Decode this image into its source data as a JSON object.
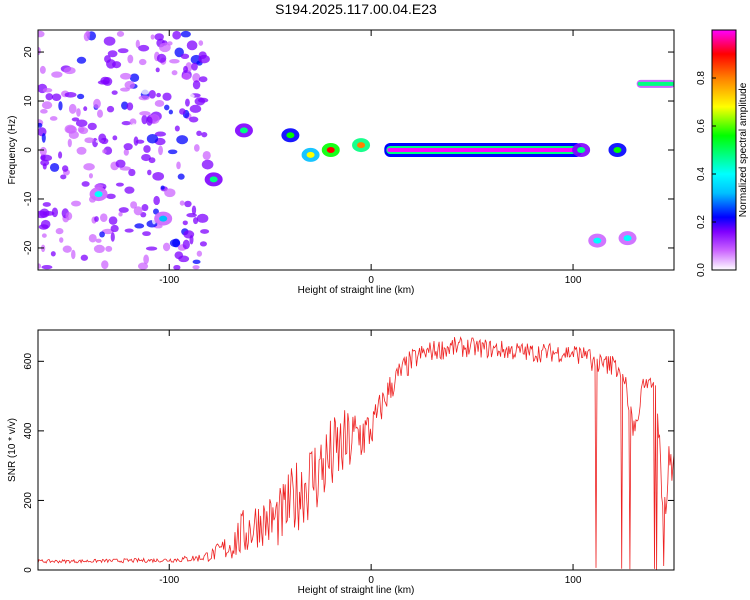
{
  "figure": {
    "title": "S194.2025.117.00.04.E23"
  },
  "chart_data": [
    {
      "type": "heatmap",
      "xlabel": "Height of straight line (km)",
      "ylabel": "Frequency (Hz)",
      "xlim": [
        -165,
        150
      ],
      "ylim": [
        -24.5,
        24.5
      ],
      "x_ticks": [
        -100,
        0,
        100
      ],
      "y_ticks": [
        20,
        10,
        0,
        -10,
        -20
      ],
      "colorbar": {
        "label": "Normalized spectral amplitude",
        "range": [
          0,
          1
        ],
        "ticks": [
          0.0,
          0.2,
          0.4,
          0.6,
          0.8
        ],
        "tick_labels": [
          "0.0",
          "0.2",
          "0.4",
          "0.6",
          "0.8"
        ]
      },
      "colormap": [
        "#ffffff",
        "#cc66ff",
        "#7f00ff",
        "#0000ff",
        "#00bfff",
        "#00ffff",
        "#00ff80",
        "#00ff00",
        "#ffff00",
        "#ff8000",
        "#ff0000",
        "#ff00ff"
      ],
      "features": [
        {
          "x_range": [
            -165,
            -80
          ],
          "freq_range": [
            -24,
            24
          ],
          "amplitude": 0.15,
          "description_level": "noise"
        },
        {
          "x": -135,
          "freq": -9,
          "amplitude": 0.45
        },
        {
          "x": -103,
          "freq": -14,
          "amplitude": 0.35
        },
        {
          "x": -78,
          "freq": -6,
          "amplitude": 0.55
        },
        {
          "x": -63,
          "freq": 4,
          "amplitude": 0.5
        },
        {
          "x": -40,
          "freq": 3,
          "amplitude": 0.6
        },
        {
          "x": -30,
          "freq": -1,
          "amplitude": 0.7
        },
        {
          "x": -20,
          "freq": 0,
          "amplitude": 0.95
        },
        {
          "x": -5,
          "freq": 1,
          "amplitude": 0.85
        },
        {
          "x_range": [
            8,
            103
          ],
          "freq": 0,
          "amplitude": 1.0
        },
        {
          "x": 104,
          "freq": 0,
          "amplitude": 0.55
        },
        {
          "x": 112,
          "freq": -18.5,
          "amplitude": 0.45
        },
        {
          "x": 122,
          "freq": 0,
          "amplitude": 0.6
        },
        {
          "x": 127,
          "freq": -18,
          "amplitude": 0.45
        },
        {
          "x_range": [
            132,
            150
          ],
          "freq": 13.5,
          "amplitude": 0.55
        }
      ]
    },
    {
      "type": "line",
      "xlabel": "Height of straight line (km)",
      "ylabel": "SNR (10 * v/v)",
      "xlim": [
        -165,
        150
      ],
      "ylim": [
        0,
        690
      ],
      "x_ticks": [
        -100,
        0,
        100
      ],
      "y_ticks": [
        0,
        200,
        400,
        600
      ],
      "color": "#ee2222",
      "series": [
        {
          "x": [
            -165,
            -150,
            -135,
            -120,
            -105,
            -95,
            -85,
            -78,
            -70,
            -64,
            -60,
            -55,
            -50,
            -45,
            -40,
            -35,
            -30,
            -25,
            -20,
            -15,
            -10,
            -5,
            0,
            5,
            10,
            15,
            20,
            25,
            30,
            35,
            40,
            50,
            60,
            70,
            80,
            90,
            100,
            105,
            110,
            115,
            120,
            125,
            128,
            131,
            135,
            138,
            141,
            144,
            146,
            148,
            150
          ],
          "y": [
            25,
            25,
            26,
            27,
            28,
            30,
            35,
            45,
            70,
            100,
            120,
            140,
            140,
            150,
            190,
            230,
            260,
            290,
            320,
            350,
            370,
            390,
            400,
            470,
            530,
            570,
            600,
            620,
            630,
            635,
            640,
            640,
            635,
            630,
            625,
            625,
            625,
            615,
            600,
            590,
            590,
            570,
            450,
            400,
            540,
            540,
            545,
            250,
            200,
            320,
            300
          ],
          "amplitude_jitter": [
            5,
            5,
            5,
            6,
            6,
            8,
            12,
            20,
            45,
            70,
            80,
            70,
            80,
            90,
            100,
            110,
            120,
            120,
            120,
            110,
            100,
            90,
            60,
            50,
            45,
            40,
            35,
            30,
            30,
            30,
            30,
            28,
            28,
            28,
            28,
            28,
            28,
            30,
            30,
            30,
            30,
            30,
            40,
            40,
            20,
            20,
            20,
            60,
            80,
            80,
            60
          ]
        }
      ]
    }
  ]
}
